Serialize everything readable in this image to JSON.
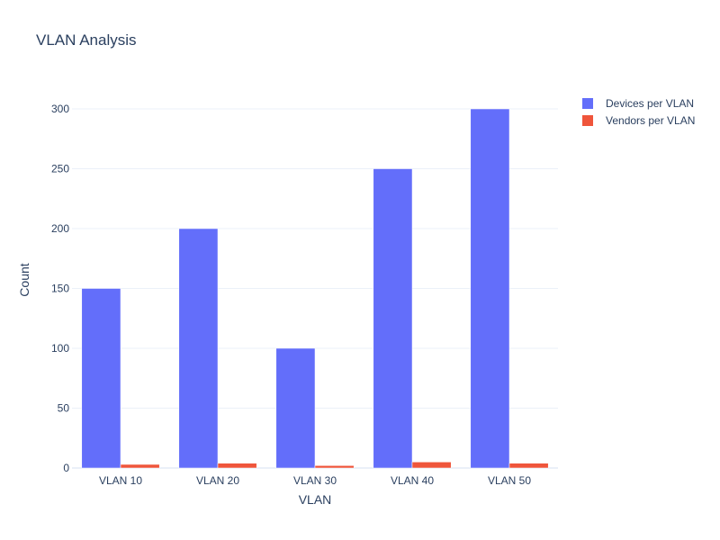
{
  "chart_data": {
    "type": "bar",
    "title": "VLAN Analysis",
    "xlabel": "VLAN",
    "ylabel": "Count",
    "categories": [
      "VLAN 10",
      "VLAN 20",
      "VLAN 30",
      "VLAN 40",
      "VLAN 50"
    ],
    "series": [
      {
        "name": "Devices per VLAN",
        "values": [
          150,
          200,
          100,
          250,
          300
        ],
        "color": "#636efa"
      },
      {
        "name": "Vendors per VLAN",
        "values": [
          3,
          4,
          2,
          5,
          4
        ],
        "color": "#ef553b"
      }
    ],
    "ylim": [
      0,
      315.8
    ],
    "yticks": [
      0,
      50,
      100,
      150,
      200,
      250,
      300
    ],
    "grid": true,
    "legend_position": "top-right"
  }
}
